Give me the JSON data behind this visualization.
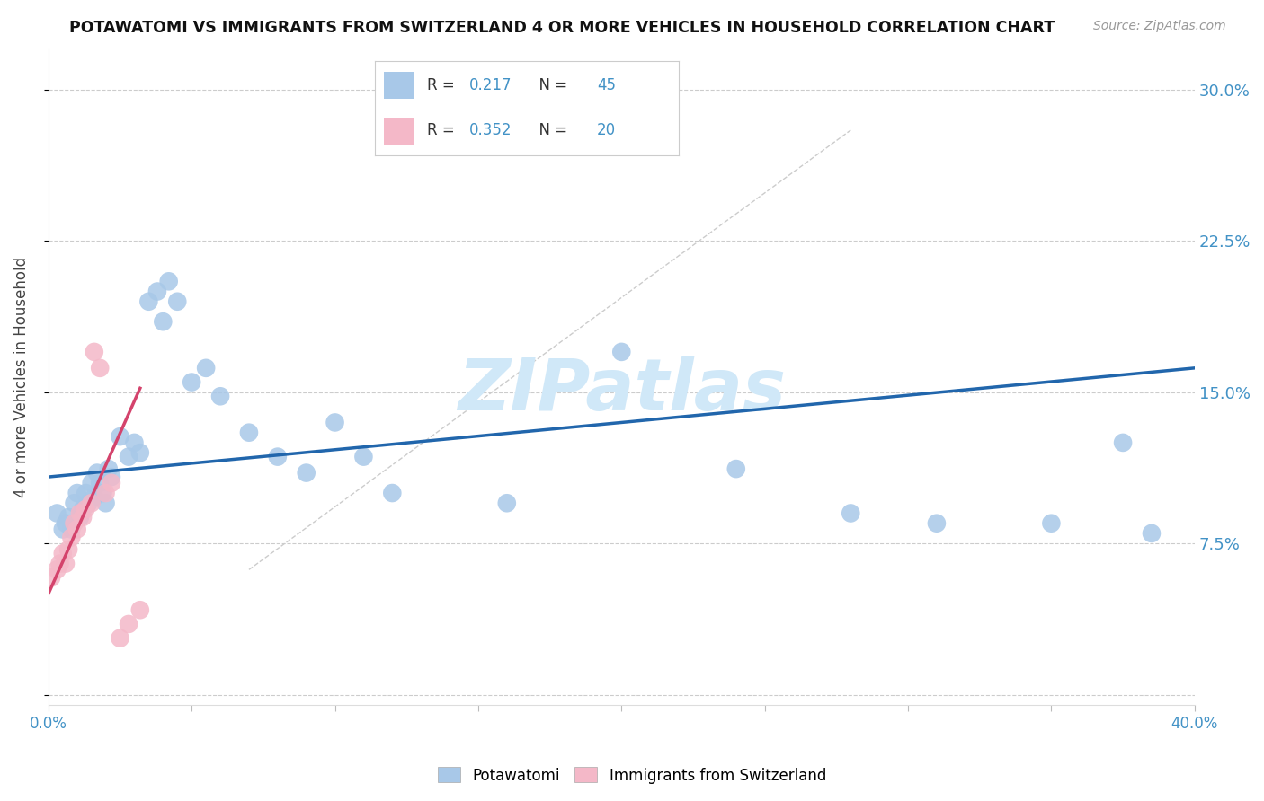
{
  "title": "POTAWATOMI VS IMMIGRANTS FROM SWITZERLAND 4 OR MORE VEHICLES IN HOUSEHOLD CORRELATION CHART",
  "source": "Source: ZipAtlas.com",
  "ylabel": "4 or more Vehicles in Household",
  "xlim": [
    0.0,
    0.4
  ],
  "ylim": [
    -0.005,
    0.32
  ],
  "yticks": [
    0.0,
    0.075,
    0.15,
    0.225,
    0.3
  ],
  "ytick_labels": [
    "",
    "7.5%",
    "15.0%",
    "22.5%",
    "30.0%"
  ],
  "xticks": [
    0.0,
    0.05,
    0.1,
    0.15,
    0.2,
    0.25,
    0.3,
    0.35,
    0.4
  ],
  "xtick_labels": [
    "0.0%",
    "",
    "",
    "",
    "",
    "",
    "",
    "",
    "40.0%"
  ],
  "legend_R1": "0.217",
  "legend_N1": "45",
  "legend_R2": "0.352",
  "legend_N2": "20",
  "blue_color": "#a8c8e8",
  "pink_color": "#f4b8c8",
  "blue_line_color": "#2166ac",
  "pink_line_color": "#d4436c",
  "watermark": "ZIPatlas",
  "watermark_color": "#d0e8f8",
  "axis_label_color": "#4292c6",
  "grid_color": "#cccccc",
  "blue_scatter_x": [
    0.003,
    0.005,
    0.006,
    0.007,
    0.008,
    0.009,
    0.01,
    0.011,
    0.012,
    0.013,
    0.014,
    0.015,
    0.016,
    0.017,
    0.018,
    0.019,
    0.02,
    0.021,
    0.022,
    0.025,
    0.028,
    0.03,
    0.032,
    0.035,
    0.038,
    0.04,
    0.042,
    0.045,
    0.05,
    0.055,
    0.06,
    0.07,
    0.08,
    0.09,
    0.1,
    0.11,
    0.12,
    0.16,
    0.2,
    0.24,
    0.28,
    0.31,
    0.35,
    0.375,
    0.385
  ],
  "blue_scatter_y": [
    0.09,
    0.082,
    0.085,
    0.088,
    0.082,
    0.095,
    0.1,
    0.088,
    0.092,
    0.1,
    0.095,
    0.105,
    0.098,
    0.11,
    0.105,
    0.1,
    0.095,
    0.112,
    0.108,
    0.128,
    0.118,
    0.125,
    0.12,
    0.195,
    0.2,
    0.185,
    0.205,
    0.195,
    0.155,
    0.162,
    0.148,
    0.13,
    0.118,
    0.11,
    0.135,
    0.118,
    0.1,
    0.095,
    0.17,
    0.112,
    0.09,
    0.085,
    0.085,
    0.125,
    0.08
  ],
  "pink_scatter_x": [
    0.001,
    0.003,
    0.004,
    0.005,
    0.006,
    0.007,
    0.008,
    0.009,
    0.01,
    0.011,
    0.012,
    0.013,
    0.015,
    0.016,
    0.018,
    0.02,
    0.022,
    0.025,
    0.028,
    0.032
  ],
  "pink_scatter_y": [
    0.058,
    0.062,
    0.065,
    0.07,
    0.065,
    0.072,
    0.078,
    0.085,
    0.082,
    0.09,
    0.088,
    0.092,
    0.095,
    0.17,
    0.162,
    0.1,
    0.105,
    0.028,
    0.035,
    0.042
  ],
  "blue_trend_x": [
    0.0,
    0.4
  ],
  "blue_trend_y": [
    0.108,
    0.162
  ],
  "pink_trend_x": [
    0.0,
    0.032
  ],
  "pink_trend_y": [
    0.05,
    0.152
  ],
  "diag_line_x": [
    0.07,
    0.28
  ],
  "diag_line_y": [
    0.062,
    0.28
  ]
}
